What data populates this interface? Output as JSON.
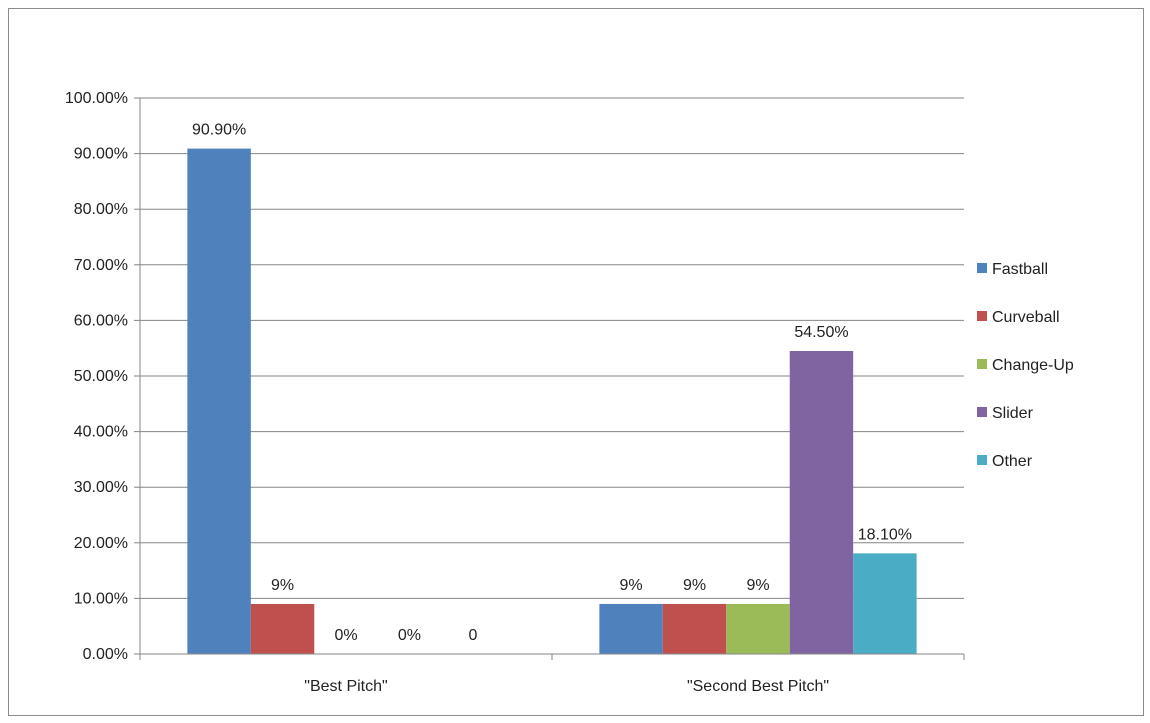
{
  "chart_data": {
    "type": "bar",
    "categories": [
      "\"Best Pitch\"",
      "\"Second Best Pitch\""
    ],
    "series": [
      {
        "name": "Fastball",
        "color": "#4f81bd",
        "values": [
          90.9,
          9
        ],
        "labels": [
          "90.90%",
          "9%"
        ]
      },
      {
        "name": "Curveball",
        "color": "#c0504d",
        "values": [
          9,
          9
        ],
        "labels": [
          "9%",
          "9%"
        ]
      },
      {
        "name": "Change-Up",
        "color": "#9bbb59",
        "values": [
          0,
          9
        ],
        "labels": [
          "0%",
          "9%"
        ]
      },
      {
        "name": "Slider",
        "color": "#8064a2",
        "values": [
          0,
          54.5
        ],
        "labels": [
          "0%",
          "54.50%"
        ]
      },
      {
        "name": "Other",
        "color": "#4bacc6",
        "values": [
          0,
          18.1
        ],
        "labels": [
          "0",
          "18.10%"
        ]
      }
    ],
    "ylim": [
      0,
      100
    ],
    "yticks": [
      0,
      10,
      20,
      30,
      40,
      50,
      60,
      70,
      80,
      90,
      100
    ],
    "ytick_labels": [
      "0.00%",
      "10.00%",
      "20.00%",
      "30.00%",
      "40.00%",
      "50.00%",
      "60.00%",
      "70.00%",
      "80.00%",
      "90.00%",
      "100.00%"
    ],
    "grid": true,
    "legend_position": "right",
    "title": "",
    "xlabel": "",
    "ylabel": ""
  }
}
